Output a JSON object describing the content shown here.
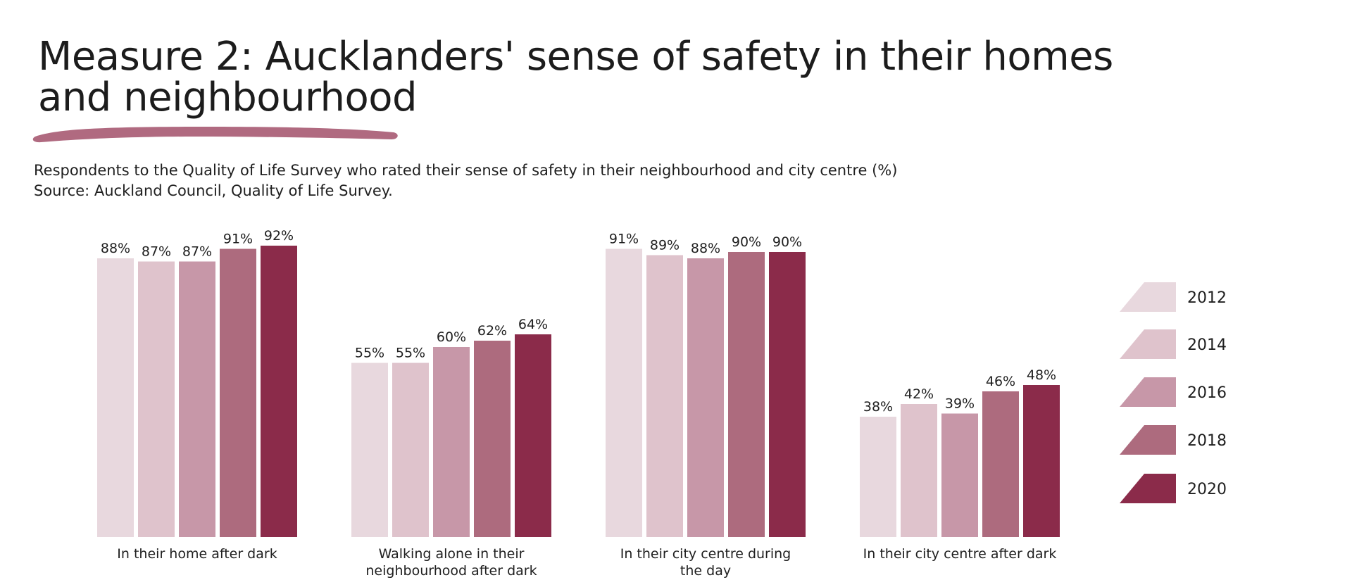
{
  "title": "Measure 2: Aucklanders' sense of safety in their homes and neighbourhood",
  "subtitle_line1": "Respondents to the Quality of Life Survey who rated their sense of safety in their neighbourhood and city centre (%)",
  "subtitle_line2": "Source: Auckland Council, Quality of Life Survey.",
  "chart_data": {
    "type": "bar",
    "title": "Measure 2: Aucklanders' sense of safety in their homes and neighbourhood",
    "xlabel": "",
    "ylabel": "%",
    "ylim": [
      0,
      100
    ],
    "grid": false,
    "legend_position": "right",
    "value_suffix": "%",
    "categories": [
      "In their home after dark",
      "Walking alone in their neighbourhood after dark",
      "In their city centre during the day",
      "In their city centre after dark"
    ],
    "category_lines": [
      [
        "In their home after dark"
      ],
      [
        "Walking alone in their",
        "neighbourhood after dark"
      ],
      [
        "In their city centre during",
        "the day"
      ],
      [
        "In their city centre after dark"
      ]
    ],
    "series": [
      {
        "name": "2012",
        "color": "#e8d8de",
        "values": [
          88,
          55,
          91,
          38
        ]
      },
      {
        "name": "2014",
        "color": "#dfc3cc",
        "values": [
          87,
          55,
          89,
          42
        ]
      },
      {
        "name": "2016",
        "color": "#c797a8",
        "values": [
          87,
          60,
          88,
          39
        ]
      },
      {
        "name": "2018",
        "color": "#ad6b7e",
        "values": [
          91,
          62,
          90,
          46
        ]
      },
      {
        "name": "2020",
        "color": "#8b2b4a",
        "values": [
          92,
          64,
          90,
          48
        ]
      }
    ]
  },
  "colors": {
    "accent": "#b06a80"
  }
}
